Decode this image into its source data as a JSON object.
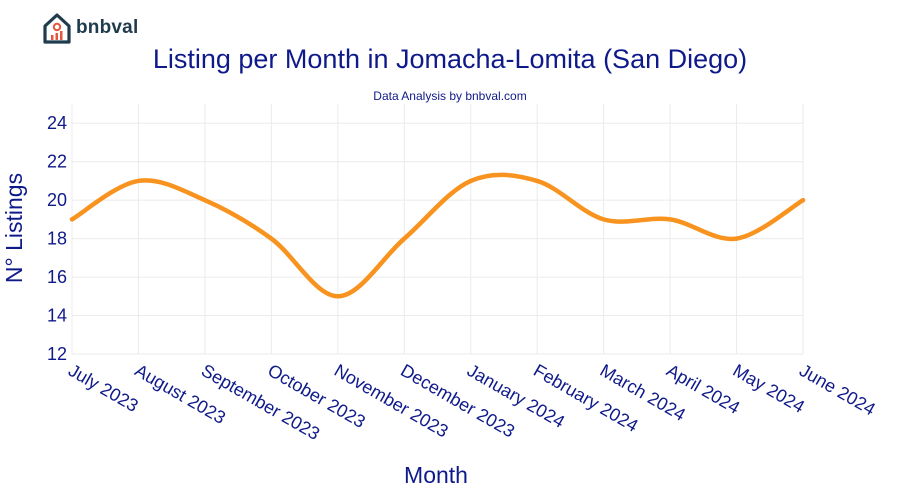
{
  "header": {
    "logo_text": "bnbval",
    "title": "Listing per Month in Jomacha-Lomita (San Diego)",
    "subtitle": "Data Analysis by bnbval.com"
  },
  "colors": {
    "line": "#f7931e",
    "text": "#0f1a8a",
    "grid": "#ebebeb",
    "logo_dark": "#1f3b4d",
    "logo_accent": "#e4573d"
  },
  "chart_data": {
    "type": "line",
    "title": "Listing per Month in Jomacha-Lomita (San Diego)",
    "subtitle": "Data Analysis by bnbval.com",
    "xlabel": "Month",
    "ylabel": "N° Listings",
    "categories": [
      "July 2023",
      "August 2023",
      "September 2023",
      "October 2023",
      "November 2023",
      "December 2023",
      "January 2024",
      "February 2024",
      "March 2024",
      "April 2024",
      "May 2024",
      "June 2024"
    ],
    "series": [
      {
        "values": [
          19,
          21,
          20,
          18,
          15,
          18,
          21,
          21,
          19,
          19,
          18,
          20
        ]
      }
    ],
    "ylim": [
      12,
      25
    ],
    "yticks": [
      12,
      14,
      16,
      18,
      20,
      22,
      24
    ],
    "grid": true,
    "smooth": true
  }
}
